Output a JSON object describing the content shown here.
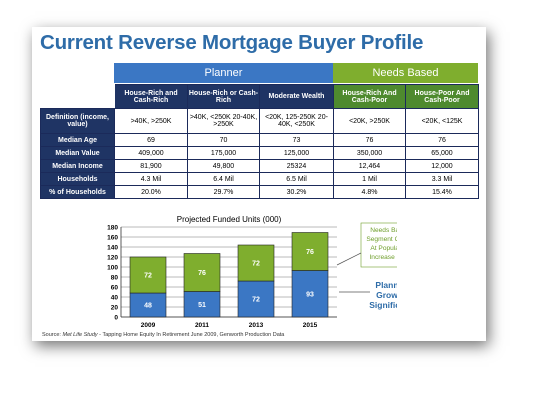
{
  "title": "Current Reverse Mortgage Buyer Profile",
  "groups": {
    "planner": "Planner",
    "needs": "Needs Based"
  },
  "table": {
    "columns": [
      "House-Rich and Cash-Rich",
      "House-Rich or Cash-Rich",
      "Moderate Wealth",
      "House-Rich And Cash-Poor",
      "House-Poor And Cash-Poor"
    ],
    "rows": [
      {
        "label": "Definition (income, value)",
        "cells": [
          ">40K, >250K",
          ">40K, <250K 20-40K, >250K",
          "<20K, 125-250K 20-40K, <250K",
          "<20K, >250K",
          "<20K, <125K"
        ]
      },
      {
        "label": "Median Age",
        "cells": [
          "69",
          "70",
          "73",
          "76",
          "76"
        ]
      },
      {
        "label": "Median Value",
        "cells": [
          "409,000",
          "175,000",
          "125,000",
          "350,000",
          "65,000"
        ]
      },
      {
        "label": "Median Income",
        "cells": [
          "81,900",
          "49,800",
          "25324",
          "12,464",
          "12,000"
        ]
      },
      {
        "label": "Households",
        "cells": [
          "4.3 Mil",
          "6.4 Mil",
          "6.5 Mil",
          "1 Mil",
          "3.3 Mil"
        ]
      },
      {
        "label": "% of Households",
        "cells": [
          "20.0%",
          "29.7%",
          "30.2%",
          "4.8%",
          "15.4%"
        ]
      }
    ]
  },
  "chart_data": {
    "type": "bar",
    "stacked": true,
    "title": "Projected Funded Units (000)",
    "categories": [
      "2009",
      "2011",
      "2013",
      "2015"
    ],
    "series": [
      {
        "name": "Planner",
        "values": [
          48,
          51,
          72,
          93
        ],
        "color": "#3b77c4"
      },
      {
        "name": "Needs Based",
        "values": [
          72,
          76,
          72,
          76
        ],
        "color": "#7fae2e"
      }
    ],
    "ylim": [
      0,
      180
    ],
    "yticks": [
      0,
      20,
      40,
      60,
      80,
      100,
      120,
      140,
      160,
      180
    ],
    "annotations": {
      "needs": "Needs Based Segment Grows At Population Increase Rate",
      "planner": "Planner Growth Significant"
    },
    "colors": {
      "needs_annot": "#6e9e2a",
      "planner_annot": "#2e6ca8"
    }
  },
  "source": {
    "prefix": "Source: ",
    "italic": "Met Life Study",
    "rest": " - Tapping Home Equity In Retirement June 2009, Genworth Production Data"
  }
}
